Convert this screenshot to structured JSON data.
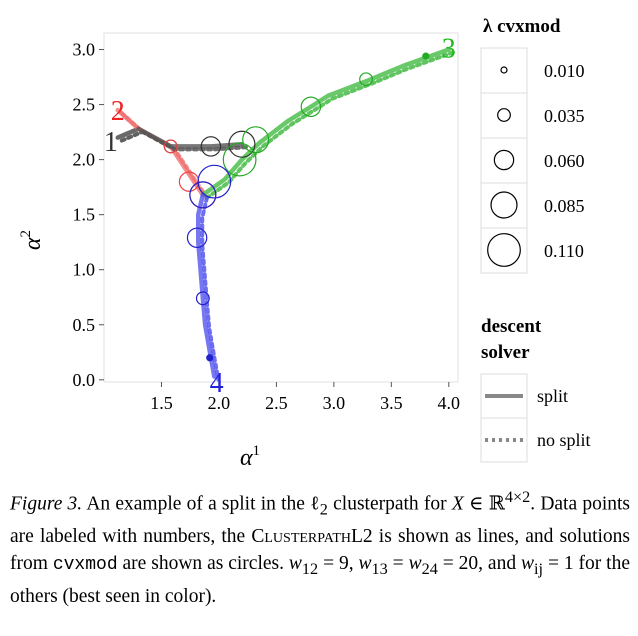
{
  "chart_data": {
    "type": "line",
    "xlabel": "α",
    "xlabel_sup": "1",
    "ylabel": "α",
    "ylabel_sup": "2",
    "xlim": [
      1.0,
      4.08
    ],
    "ylim": [
      -0.02,
      3.15
    ],
    "x_ticks": [
      1.5,
      2.0,
      2.5,
      3.0,
      3.5,
      4.0
    ],
    "x_tick_labels": [
      "1.5",
      "2.0",
      "2.5",
      "3.0",
      "3.5",
      "4.0"
    ],
    "y_ticks": [
      0.0,
      0.5,
      1.0,
      1.5,
      2.0,
      2.5,
      3.0
    ],
    "y_tick_labels": [
      "0.0",
      "0.5",
      "1.0",
      "1.5",
      "2.0",
      "2.5",
      "3.0"
    ],
    "grid": false,
    "series": [
      {
        "color": "#444444",
        "points": [
          [
            1.12,
            2.2
          ],
          [
            1.3,
            2.28
          ]
        ]
      },
      {
        "color": "#f07070",
        "points": [
          [
            1.12,
            2.45
          ],
          [
            1.3,
            2.28
          ],
          [
            1.58,
            2.12
          ],
          [
            1.86,
            1.68
          ]
        ]
      },
      {
        "color": "#44bb44",
        "points": [
          [
            4.0,
            3.0
          ],
          [
            3.6,
            2.85
          ],
          [
            3.3,
            2.72
          ],
          [
            2.95,
            2.58
          ],
          [
            2.8,
            2.48
          ],
          [
            2.6,
            2.35
          ],
          [
            2.35,
            2.15
          ],
          [
            2.2,
            2.0
          ],
          [
            2.05,
            1.82
          ],
          [
            1.86,
            1.68
          ]
        ]
      },
      {
        "color": "#5555ee",
        "points": [
          [
            1.86,
            1.68
          ],
          [
            1.82,
            1.5
          ],
          [
            1.82,
            1.25
          ],
          [
            1.84,
            1.0
          ],
          [
            1.86,
            0.74
          ],
          [
            1.88,
            0.5
          ],
          [
            1.93,
            0.2
          ],
          [
            1.96,
            0.03
          ]
        ]
      },
      {
        "color": "#555555",
        "points": [
          [
            1.3,
            2.28
          ],
          [
            1.58,
            2.12
          ],
          [
            1.93,
            2.12
          ],
          [
            2.2,
            2.14
          ]
        ]
      }
    ],
    "solver_split_style": "solid",
    "solver_nosplit_style": "dotted",
    "point_labels": [
      {
        "text": "1",
        "x": 1.06,
        "y": 2.17,
        "color": "#333333"
      },
      {
        "text": "2",
        "x": 1.12,
        "y": 2.45,
        "color": "#ee2222"
      },
      {
        "text": "3",
        "x": 4.0,
        "y": 3.02,
        "color": "#22bb22"
      },
      {
        "text": "4",
        "x": 1.98,
        "y": -0.02,
        "color": "#2222dd"
      }
    ],
    "circles": [
      {
        "x": 1.58,
        "y": 2.12,
        "lambda": 0.035,
        "color": "#333333"
      },
      {
        "x": 1.93,
        "y": 2.12,
        "lambda": 0.06,
        "color": "#333333"
      },
      {
        "x": 2.2,
        "y": 2.14,
        "lambda": 0.085,
        "color": "#333333"
      },
      {
        "x": 1.58,
        "y": 2.12,
        "lambda": 0.035,
        "color": "#ee4444"
      },
      {
        "x": 1.74,
        "y": 1.8,
        "lambda": 0.06,
        "color": "#ee4444"
      },
      {
        "x": 1.86,
        "y": 1.68,
        "lambda": 0.085,
        "color": "#ee4444"
      },
      {
        "x": 3.28,
        "y": 2.73,
        "lambda": 0.035,
        "color": "#22aa22"
      },
      {
        "x": 2.8,
        "y": 2.48,
        "lambda": 0.06,
        "color": "#22aa22"
      },
      {
        "x": 2.32,
        "y": 2.18,
        "lambda": 0.085,
        "color": "#22aa22"
      },
      {
        "x": 2.18,
        "y": 2.0,
        "lambda": 0.11,
        "color": "#22aa22"
      },
      {
        "x": 3.8,
        "y": 2.94,
        "lambda": 0.01,
        "color": "#22aa22"
      },
      {
        "x": 1.92,
        "y": 0.2,
        "lambda": 0.01,
        "color": "#2222cc"
      },
      {
        "x": 1.86,
        "y": 0.74,
        "lambda": 0.035,
        "color": "#2222cc"
      },
      {
        "x": 1.81,
        "y": 1.29,
        "lambda": 0.06,
        "color": "#2222cc"
      },
      {
        "x": 1.86,
        "y": 1.68,
        "lambda": 0.085,
        "color": "#2222cc"
      },
      {
        "x": 1.96,
        "y": 1.8,
        "lambda": 0.11,
        "color": "#2222cc"
      }
    ],
    "legend_lambda": {
      "title": "λ cvxmod",
      "entries": [
        {
          "label": "0.010",
          "lambda": 0.01
        },
        {
          "label": "0.035",
          "lambda": 0.035
        },
        {
          "label": "0.060",
          "lambda": 0.06
        },
        {
          "label": "0.085",
          "lambda": 0.085
        },
        {
          "label": "0.110",
          "lambda": 0.11
        }
      ]
    },
    "legend_solver": {
      "title_line1": "descent",
      "title_line2": "solver",
      "entries": [
        {
          "label": "split",
          "style": "solid"
        },
        {
          "label": "no split",
          "style": "dotted"
        }
      ]
    }
  },
  "caption": {
    "label": "Figure 3.",
    "text": [
      "An example of a split in the ℓ",
      "2",
      " clusterpath for ",
      "X",
      " ∈ ℝ",
      "4×2",
      ". Data points are labeled with numbers, the ",
      "ClusterpathL2",
      " is shown as lines, and solutions from ",
      "cvxmod",
      " are shown as circles. ",
      "w",
      "12",
      " = 9, ",
      "w",
      "13",
      " = ",
      "w",
      "24",
      " = 20, and ",
      "w",
      "ij",
      " = 1 for the others (best seen in color)."
    ]
  }
}
